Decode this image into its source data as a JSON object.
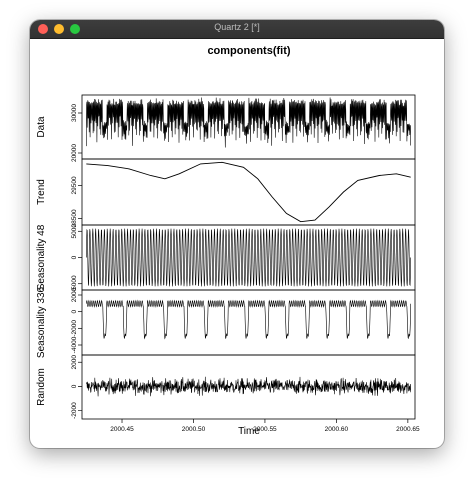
{
  "window": {
    "title": "Quartz 2 [*]",
    "buttons": {
      "close_color": "#ff5f57",
      "minimize_color": "#febc2e",
      "maximize_color": "#28c840"
    }
  },
  "chart_data": {
    "type": "line",
    "title": "components(fit)",
    "xlabel": "Time",
    "xlim": [
      2000.422,
      2000.655
    ],
    "x_ticks": [
      "2000.45",
      "2000.50",
      "2000.55",
      "2000.60",
      "2000.65"
    ],
    "x_tick_values": [
      2000.45,
      2000.5,
      2000.55,
      2000.6,
      2000.65
    ],
    "panels": [
      {
        "name": "Data",
        "ylabel": "Data",
        "ylim": [
          18500,
          34500
        ],
        "y_ticks": [
          "20000",
          "30000"
        ],
        "y_tick_values": [
          20000,
          30000
        ],
        "description_values": {
          "daily_peak": 33000,
          "daily_trough": 19500,
          "weekend_peak": 27500,
          "cycles": 16
        }
      },
      {
        "name": "Trend",
        "ylabel": "Trend",
        "ylim": [
          28300,
          30300
        ],
        "y_ticks": [
          "28500",
          "29500"
        ],
        "y_tick_values": [
          28500,
          29500
        ],
        "points": [
          [
            2000.425,
            30150
          ],
          [
            2000.44,
            30100
          ],
          [
            2000.455,
            30000
          ],
          [
            2000.47,
            29800
          ],
          [
            2000.48,
            29700
          ],
          [
            2000.49,
            29850
          ],
          [
            2000.505,
            30150
          ],
          [
            2000.52,
            30200
          ],
          [
            2000.535,
            30050
          ],
          [
            2000.545,
            29700
          ],
          [
            2000.555,
            29150
          ],
          [
            2000.565,
            28650
          ],
          [
            2000.575,
            28400
          ],
          [
            2000.585,
            28450
          ],
          [
            2000.595,
            28850
          ],
          [
            2000.605,
            29300
          ],
          [
            2000.615,
            29650
          ],
          [
            2000.63,
            29800
          ],
          [
            2000.642,
            29850
          ],
          [
            2000.652,
            29750
          ]
        ]
      },
      {
        "name": "Seasonality 48",
        "ylabel": "Seasonality 48",
        "ylim": [
          -6200,
          6200
        ],
        "y_ticks": [
          "-5000",
          "0",
          "5000"
        ],
        "y_tick_values": [
          -5000,
          0,
          5000
        ],
        "description_values": {
          "amplitude": 5500,
          "cycles": 112
        }
      },
      {
        "name": "Seasonality 336",
        "ylabel": "Seasonality 336",
        "ylim": [
          -5200,
          2600
        ],
        "y_ticks": [
          "-4000",
          "-2000",
          "0",
          "2000"
        ],
        "y_tick_values": [
          -4000,
          -2000,
          0,
          2000
        ],
        "description_values": {
          "weekday_level": 1200,
          "weekend_dip": -4500,
          "cycles": 16
        }
      },
      {
        "name": "Random",
        "ylabel": "Random",
        "ylim": [
          -2700,
          2600
        ],
        "y_ticks": [
          "-2000",
          "0",
          "2000"
        ],
        "y_tick_values": [
          -2000,
          0,
          2000
        ],
        "description_values": {
          "noise_sd": 450,
          "max": 2200,
          "min": -2000
        }
      }
    ],
    "line_color": "#000000"
  }
}
